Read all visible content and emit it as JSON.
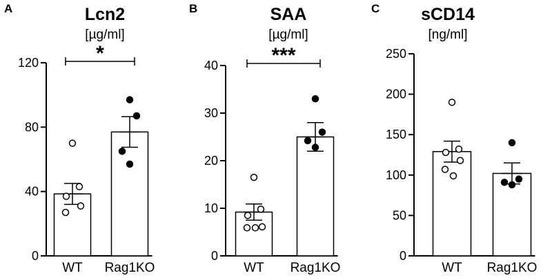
{
  "chart_data": [
    {
      "type": "bar",
      "panel": "A",
      "title": "Lcn2",
      "unit": "[µg/ml]",
      "categories": [
        "WT",
        "Rag1KO"
      ],
      "values": [
        38.5,
        77
      ],
      "sem": [
        6.5,
        9.5
      ],
      "points": [
        [
          70,
          43,
          37,
          31,
          27
        ],
        [
          97,
          87,
          65,
          57
        ]
      ],
      "point_style": [
        "open",
        "filled"
      ],
      "yticks": [
        "0",
        "40",
        "80",
        "120"
      ],
      "ylim": [
        0,
        120
      ],
      "significance": "*"
    },
    {
      "type": "bar",
      "panel": "B",
      "title": "SAA",
      "unit": "[µg/ml]",
      "categories": [
        "WT",
        "Rag1KO"
      ],
      "values": [
        9.2,
        25
      ],
      "sem": [
        1.7,
        3
      ],
      "points": [
        [
          16.5,
          9.8,
          8.5,
          6.1,
          5.9,
          5.9
        ],
        [
          33,
          26,
          24.2,
          22.8
        ]
      ],
      "point_style": [
        "open",
        "filled"
      ],
      "yticks": [
        "0",
        "10",
        "20",
        "30",
        "40"
      ],
      "ylim": [
        0,
        40
      ],
      "significance": "***"
    },
    {
      "type": "bar",
      "panel": "C",
      "title": "sCD14",
      "unit": "[ng/ml]",
      "categories": [
        "WT",
        "Rag1KO"
      ],
      "values": [
        129,
        102
      ],
      "sem": [
        13,
        13
      ],
      "points": [
        [
          190,
          132,
          128,
          118,
          107,
          99
        ],
        [
          140,
          95,
          91,
          88
        ]
      ],
      "point_style": [
        "open",
        "filled"
      ],
      "yticks": [
        "0",
        "50",
        "100",
        "150",
        "200",
        "250"
      ],
      "ylim": [
        0,
        250
      ],
      "significance": ""
    }
  ]
}
